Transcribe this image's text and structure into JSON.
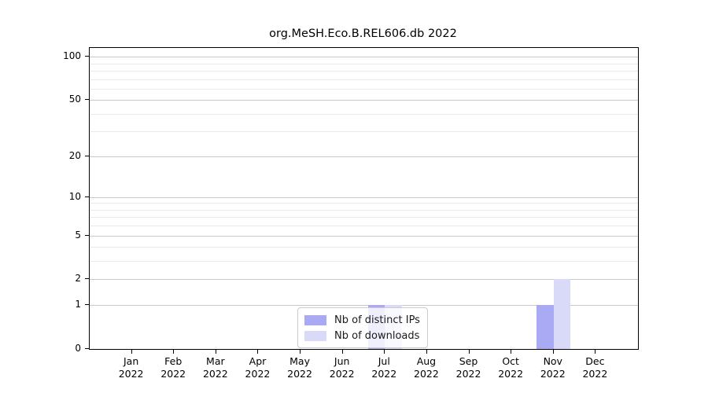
{
  "figure": {
    "background": "#ffffff"
  },
  "chart_data": {
    "type": "bar",
    "title": "org.MeSH.Eco.B.REL606.db 2022",
    "categories": [
      "Jan",
      "Feb",
      "Mar",
      "Apr",
      "May",
      "Jun",
      "Jul",
      "Aug",
      "Sep",
      "Oct",
      "Nov",
      "Dec"
    ],
    "category_year": "2022",
    "series": [
      {
        "name": "Nb of distinct IPs",
        "color": "#a9a9f4",
        "values": [
          0,
          0,
          0,
          0,
          0,
          0,
          1,
          0,
          0,
          0,
          1,
          0
        ]
      },
      {
        "name": "Nb of downloads",
        "color": "#d9d9f8",
        "values": [
          0,
          0,
          0,
          0,
          0,
          0,
          1,
          0,
          0,
          0,
          2,
          0
        ]
      }
    ],
    "xlabel": "",
    "ylabel": "",
    "yscale": "log1p",
    "ylim": [
      0,
      115
    ],
    "yticks": [
      0,
      1,
      2,
      5,
      10,
      20,
      50,
      100
    ],
    "yticks_minor": [
      3,
      4,
      6,
      7,
      8,
      9,
      30,
      40,
      60,
      70,
      80,
      90
    ],
    "grid": true,
    "legend_position": "inside-bottom-center"
  },
  "legend": {
    "entries": [
      {
        "label": "Nb of distinct IPs",
        "color": "#a9a9f4"
      },
      {
        "label": "Nb of downloads",
        "color": "#d9d9f8"
      }
    ]
  },
  "colors": {
    "grid_major": "#c8c8c8",
    "grid_minor": "#eaeaea",
    "spine": "#000000"
  }
}
